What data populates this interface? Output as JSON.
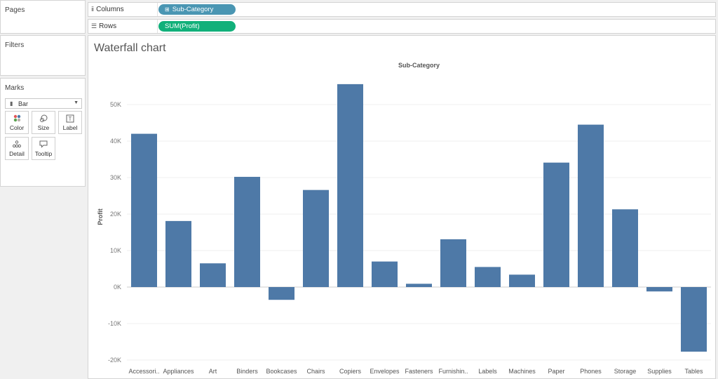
{
  "pages": {
    "title": "Pages"
  },
  "filters": {
    "title": "Filters"
  },
  "marks": {
    "title": "Marks",
    "mark_type": "Bar",
    "buttons": [
      "Color",
      "Size",
      "Label",
      "Detail",
      "Tooltip"
    ]
  },
  "shelves": {
    "columns_label": "Columns",
    "columns_pill": "Sub-Category",
    "rows_label": "Rows",
    "rows_pill": "SUM(Profit)"
  },
  "colors": {
    "bar": "#4e79a7",
    "columns_pill": "#4a96b3",
    "rows_pill": "#11b07a"
  },
  "view": {
    "title": "Waterfall chart"
  },
  "chart_data": {
    "type": "bar",
    "title": "Waterfall chart",
    "header": "Sub-Category",
    "xlabel": "",
    "ylabel": "Profit",
    "categories": [
      "Accessori..",
      "Appliances",
      "Art",
      "Binders",
      "Bookcases",
      "Chairs",
      "Copiers",
      "Envelopes",
      "Fasteners",
      "Furnishin..",
      "Labels",
      "Machines",
      "Paper",
      "Phones",
      "Storage",
      "Supplies",
      "Tables"
    ],
    "values": [
      42000,
      18100,
      6500,
      30200,
      -3500,
      26600,
      55600,
      7000,
      900,
      13100,
      5500,
      3400,
      34100,
      44500,
      21300,
      -1200,
      -17700
    ],
    "ylim": [
      -21000,
      58000
    ],
    "y_ticks": [
      -20000,
      -10000,
      0,
      10000,
      20000,
      30000,
      40000,
      50000
    ],
    "y_tick_labels": [
      "-20K",
      "-10K",
      "0K",
      "10K",
      "20K",
      "30K",
      "40K",
      "50K"
    ],
    "grid": true,
    "legend": "none"
  }
}
